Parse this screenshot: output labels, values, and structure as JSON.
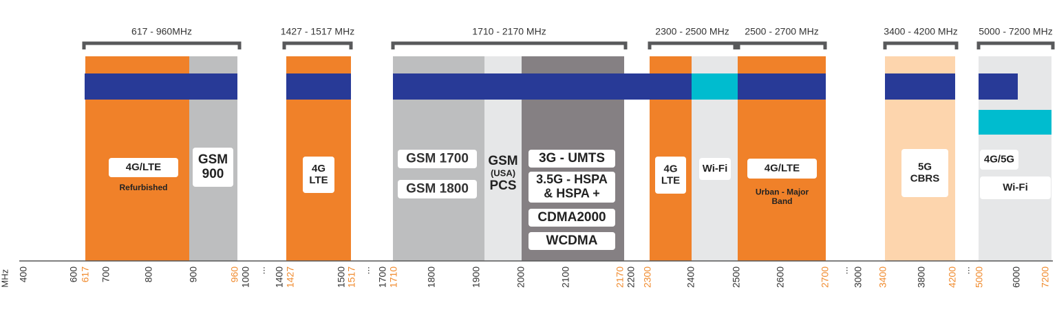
{
  "unit_label": "MHz",
  "ranges": [
    "617 - 960MHz",
    "1427 - 1517 MHz",
    "1710 - 2170 MHz",
    "2300 - 2500 MHz",
    "2500 - 2700 MHz",
    "3400 - 4200 MHz",
    "5000 - 7200 MHz"
  ],
  "ticks": [
    {
      "text": "400",
      "color": "#333333"
    },
    {
      "text": "600",
      "color": "#333333"
    },
    {
      "text": "617",
      "color": "#f08a2c"
    },
    {
      "text": "700",
      "color": "#333333"
    },
    {
      "text": "800",
      "color": "#333333"
    },
    {
      "text": "900",
      "color": "#333333"
    },
    {
      "text": "960",
      "color": "#f08a2c"
    },
    {
      "text": "1000",
      "color": "#333333"
    },
    {
      "text": "...",
      "color": "#333333"
    },
    {
      "text": "1400",
      "color": "#333333"
    },
    {
      "text": "1427",
      "color": "#f08a2c"
    },
    {
      "text": "1500",
      "color": "#333333"
    },
    {
      "text": "1517",
      "color": "#f08a2c"
    },
    {
      "text": "...",
      "color": "#333333"
    },
    {
      "text": "1700",
      "color": "#333333"
    },
    {
      "text": "1710",
      "color": "#f08a2c"
    },
    {
      "text": "1800",
      "color": "#333333"
    },
    {
      "text": "1900",
      "color": "#333333"
    },
    {
      "text": "2000",
      "color": "#333333"
    },
    {
      "text": "2100",
      "color": "#333333"
    },
    {
      "text": "2170",
      "color": "#f08a2c"
    },
    {
      "text": "2200",
      "color": "#333333"
    },
    {
      "text": "2300",
      "color": "#f08a2c"
    },
    {
      "text": "2400",
      "color": "#333333"
    },
    {
      "text": "2500",
      "color": "#333333"
    },
    {
      "text": "2600",
      "color": "#333333"
    },
    {
      "text": "2700",
      "color": "#f08a2c"
    },
    {
      "text": "...",
      "color": "#333333"
    },
    {
      "text": "3000",
      "color": "#333333"
    },
    {
      "text": "3400",
      "color": "#f08a2c"
    },
    {
      "text": "3800",
      "color": "#333333"
    },
    {
      "text": "4200",
      "color": "#f08a2c"
    },
    {
      "text": "...",
      "color": "#333333"
    },
    {
      "text": "5000",
      "color": "#f08a2c"
    },
    {
      "text": "6000",
      "color": "#333333"
    },
    {
      "text": "7200",
      "color": "#f08a2c"
    }
  ],
  "labels": [
    [
      "4G/LTE"
    ],
    [
      "Refurbished"
    ],
    [
      "GSM",
      "900"
    ],
    [
      "4G",
      "LTE"
    ],
    [
      "GSM 1700"
    ],
    [
      "GSM 1800"
    ],
    [
      "GSM",
      "(USA)",
      "PCS"
    ],
    [
      "3G - UMTS"
    ],
    [
      "3.5G - HSPA",
      "& HSPA +"
    ],
    [
      "CDMA2000"
    ],
    [
      "WCDMA"
    ],
    [
      "4G",
      "LTE"
    ],
    [
      "Wi-Fi"
    ],
    [
      "4G/LTE"
    ],
    [
      "Urban - Major",
      "Band"
    ],
    [
      "5G",
      "CBRS"
    ],
    [
      "4G/5G"
    ],
    [
      "Wi-Fi"
    ]
  ]
}
